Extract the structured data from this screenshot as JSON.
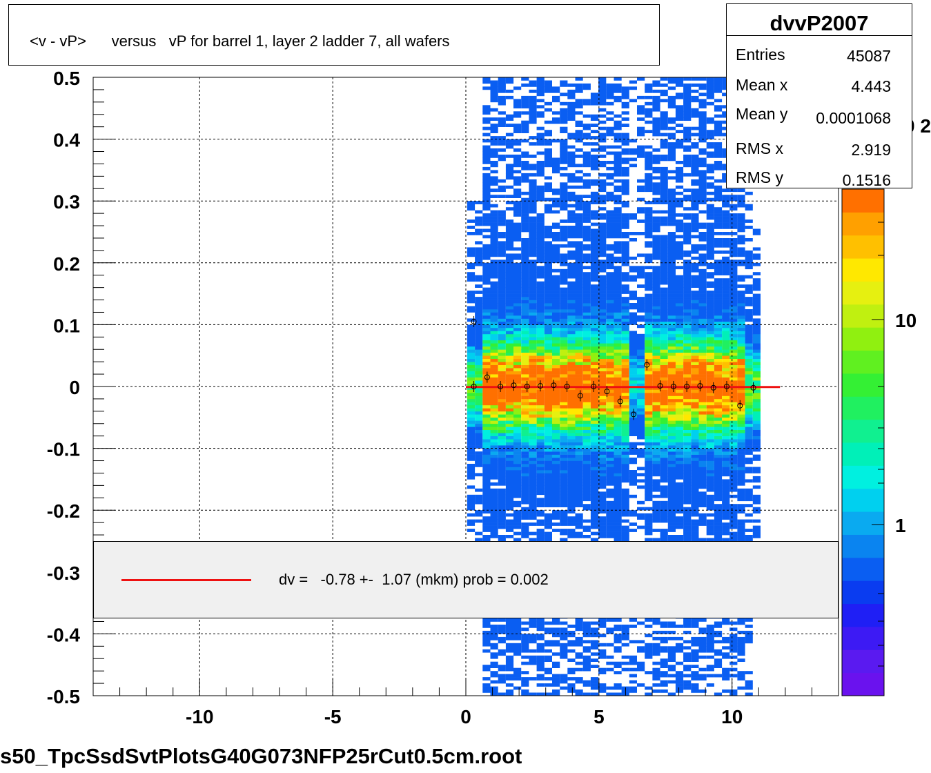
{
  "chart_data": {
    "type": "heatmap",
    "title": "<v - vP>      versus   vP for barrel 1, layer 2 ladder 7, all wafers",
    "xlim": [
      -14,
      14
    ],
    "ylim": [
      -0.5,
      0.5
    ],
    "x_ticks": [
      "-10",
      "-5",
      "0",
      "5",
      "10"
    ],
    "y_ticks": [
      "0.5",
      "0.4",
      "0.3",
      "0.2",
      "0.1",
      "0",
      "-0.1",
      "-0.2",
      "-0.3",
      "-0.4",
      "-0.5"
    ],
    "colorbar_ticks": [
      "10",
      "1"
    ],
    "colorbar_partial_label": "0 2",
    "grid": true,
    "profile_points": [
      {
        "x": 0.3,
        "y": 0.0
      },
      {
        "x": 0.3,
        "y": 0.105
      },
      {
        "x": 0.8,
        "y": 0.015
      },
      {
        "x": 1.3,
        "y": 0.0
      },
      {
        "x": 1.8,
        "y": 0.002
      },
      {
        "x": 2.3,
        "y": 0.0
      },
      {
        "x": 2.8,
        "y": 0.001
      },
      {
        "x": 3.3,
        "y": 0.002
      },
      {
        "x": 3.8,
        "y": 0.0
      },
      {
        "x": 4.3,
        "y": -0.015
      },
      {
        "x": 4.8,
        "y": 0.0
      },
      {
        "x": 5.3,
        "y": -0.008
      },
      {
        "x": 5.8,
        "y": -0.024
      },
      {
        "x": 6.3,
        "y": -0.045
      },
      {
        "x": 6.8,
        "y": 0.035
      },
      {
        "x": 7.3,
        "y": 0.001
      },
      {
        "x": 7.8,
        "y": 0.0
      },
      {
        "x": 8.3,
        "y": 0.0
      },
      {
        "x": 8.8,
        "y": 0.001
      },
      {
        "x": 9.3,
        "y": -0.002
      },
      {
        "x": 9.8,
        "y": 0.0
      },
      {
        "x": 10.3,
        "y": -0.031
      },
      {
        "x": 10.8,
        "y": -0.002
      }
    ],
    "fit_line": {
      "x_start": 0.0,
      "x_end": 11.8,
      "y": -0.00078
    }
  },
  "stats": {
    "name": "dvvP2007",
    "rows": [
      {
        "label": "Entries",
        "value": "45087"
      },
      {
        "label": "Mean x",
        "value": "4.443"
      },
      {
        "label": "Mean y",
        "value": "0.0001068"
      },
      {
        "label": "RMS x",
        "value": "2.919"
      },
      {
        "label": "RMS y",
        "value": "0.1516"
      }
    ]
  },
  "legend": {
    "text": "dv =   -0.78 +-  1.07 (mkm) prob = 0.002"
  },
  "footer": "s50_TpcSsdSvtPlotsG40G073NFP25rCut0.5cm.root",
  "colors": {
    "fit_line": "#ee1111",
    "legend_bg": "#f0f0f0"
  }
}
